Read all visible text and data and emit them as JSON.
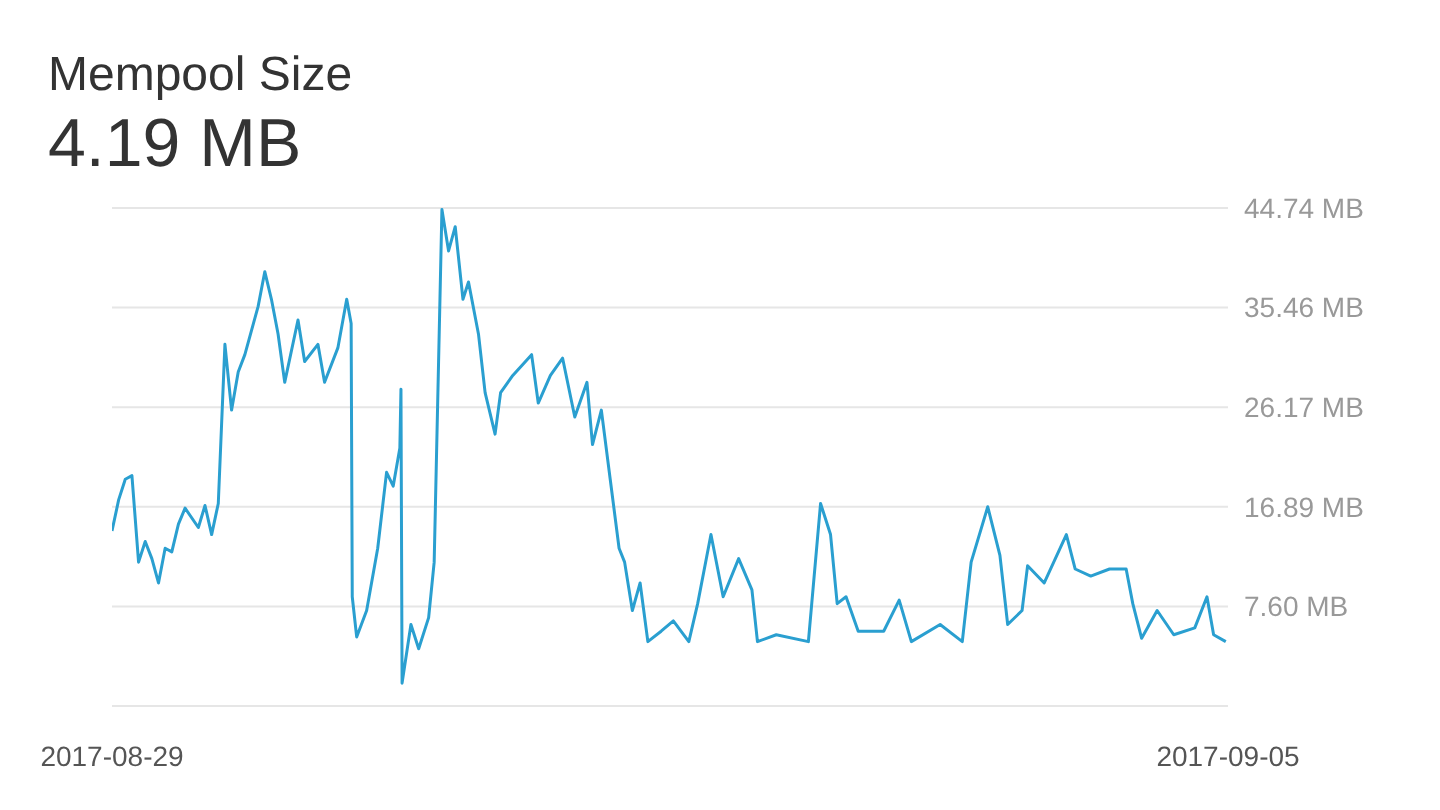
{
  "chart_data": {
    "type": "line",
    "title": "Mempool Size",
    "subtitle": "4.19 MB",
    "grid": "y",
    "xlim": [
      "2017-08-29",
      "2017-09-05"
    ],
    "xticks": [
      "2017-08-29",
      "2017-09-05"
    ],
    "ylim": [
      -1.68,
      44.74
    ],
    "yticks": [
      {
        "value": 7.6,
        "label": "7.60 MB"
      },
      {
        "value": 16.89,
        "label": "16.89 MB"
      },
      {
        "value": 26.17,
        "label": "26.17 MB"
      },
      {
        "value": 35.46,
        "label": "35.46 MB"
      },
      {
        "value": 44.74,
        "label": "44.74 MB"
      }
    ],
    "series": [
      {
        "color": "#2a9fd0",
        "x": [
          "2017-08-29T00:00",
          "2017-08-29T01:00",
          "2017-08-29T02:00",
          "2017-08-29T03:00",
          "2017-08-29T04:00",
          "2017-08-29T05:00",
          "2017-08-29T06:00",
          "2017-08-29T07:00",
          "2017-08-29T08:00",
          "2017-08-29T09:00",
          "2017-08-29T10:00",
          "2017-08-29T11:00",
          "2017-08-29T13:00",
          "2017-08-29T14:00",
          "2017-08-29T15:00",
          "2017-08-29T16:00",
          "2017-08-29T17:00",
          "2017-08-29T18:00",
          "2017-08-29T19:00",
          "2017-08-29T20:00",
          "2017-08-29T22:00",
          "2017-08-29T23:00",
          "2017-08-30T00:00",
          "2017-08-30T01:00",
          "2017-08-30T02:00",
          "2017-08-30T04:00",
          "2017-08-30T05:00",
          "2017-08-30T07:00",
          "2017-08-30T08:00",
          "2017-08-30T10:00",
          "2017-08-30T11:20",
          "2017-08-30T12:00",
          "2017-08-30T12:10",
          "2017-08-30T12:50",
          "2017-08-30T14:20",
          "2017-08-30T16:00",
          "2017-08-30T17:20",
          "2017-08-30T18:20",
          "2017-08-30T19:20",
          "2017-08-30T19:30",
          "2017-08-30T19:40",
          "2017-08-30T21:00",
          "2017-08-30T22:10",
          "2017-08-30T23:40",
          "2017-08-31T00:30",
          "2017-08-31T01:40",
          "2017-08-31T02:40",
          "2017-08-31T03:40",
          "2017-08-31T04:50",
          "2017-08-31T05:40",
          "2017-08-31T07:10",
          "2017-08-31T08:10",
          "2017-08-31T09:40",
          "2017-08-31T10:30",
          "2017-08-31T12:20",
          "2017-08-31T15:10",
          "2017-08-31T16:10",
          "2017-08-31T18:00",
          "2017-08-31T19:50",
          "2017-08-31T21:40",
          "2017-08-31T23:30",
          "2017-09-01T00:20",
          "2017-09-01T01:40",
          "2017-09-01T03:00",
          "2017-09-01T04:20",
          "2017-09-01T05:10",
          "2017-09-01T06:20",
          "2017-09-01T07:30",
          "2017-09-01T08:40",
          "2017-09-01T10:40",
          "2017-09-01T12:30",
          "2017-09-01T14:50",
          "2017-09-01T16:10",
          "2017-09-01T18:10",
          "2017-09-01T20:00",
          "2017-09-01T22:20",
          "2017-09-02T00:20",
          "2017-09-02T01:10",
          "2017-09-02T04:00",
          "2017-09-02T08:50",
          "2017-09-02T10:40",
          "2017-09-02T12:10",
          "2017-09-02T13:10",
          "2017-09-02T14:30",
          "2017-09-02T16:20",
          "2017-09-02T20:10",
          "2017-09-02T22:30",
          "2017-09-03T00:20",
          "2017-09-03T04:40",
          "2017-09-03T08:00",
          "2017-09-03T09:20",
          "2017-09-03T11:50",
          "2017-09-03T13:40",
          "2017-09-03T14:50",
          "2017-09-03T17:00",
          "2017-09-03T17:50",
          "2017-09-03T20:20",
          "2017-09-03T23:40",
          "2017-09-04T01:00",
          "2017-09-04T03:20",
          "2017-09-04T06:10",
          "2017-09-04T08:40",
          "2017-09-04T09:40",
          "2017-09-04T11:00",
          "2017-09-04T13:20",
          "2017-09-04T15:50",
          "2017-09-04T19:00",
          "2017-09-04T20:50",
          "2017-09-04T21:50",
          "2017-09-04T23:40"
        ],
        "values": [
          14.63,
          17.53,
          19.46,
          19.79,
          11.73,
          13.66,
          12.06,
          9.79,
          13.02,
          12.69,
          15.27,
          16.76,
          14.96,
          17.01,
          14.3,
          17.2,
          32.03,
          25.9,
          29.46,
          31.07,
          35.57,
          38.8,
          36.23,
          33.0,
          28.49,
          34.3,
          30.43,
          32.03,
          28.49,
          31.7,
          36.23,
          33.97,
          8.5,
          4.76,
          7.22,
          13.02,
          20.1,
          18.82,
          22.36,
          27.84,
          0.45,
          5.92,
          3.66,
          6.56,
          11.73,
          44.6,
          40.74,
          43.0,
          36.23,
          37.84,
          33.0,
          27.53,
          23.66,
          27.53,
          29.13,
          31.07,
          26.56,
          29.13,
          30.74,
          25.26,
          28.49,
          22.69,
          25.9,
          19.46,
          13.02,
          11.73,
          7.22,
          9.79,
          4.32,
          5.29,
          6.25,
          4.32,
          7.86,
          14.3,
          8.5,
          12.06,
          9.15,
          4.32,
          4.96,
          4.32,
          17.2,
          14.3,
          7.86,
          8.5,
          5.29,
          5.29,
          8.19,
          4.32,
          5.92,
          4.32,
          11.73,
          16.89,
          12.36,
          5.92,
          7.22,
          11.4,
          9.79,
          14.3,
          11.09,
          10.43,
          11.09,
          11.09,
          7.86,
          4.63,
          7.22,
          4.96,
          5.6,
          8.5,
          4.96,
          4.32
        ]
      }
    ]
  }
}
